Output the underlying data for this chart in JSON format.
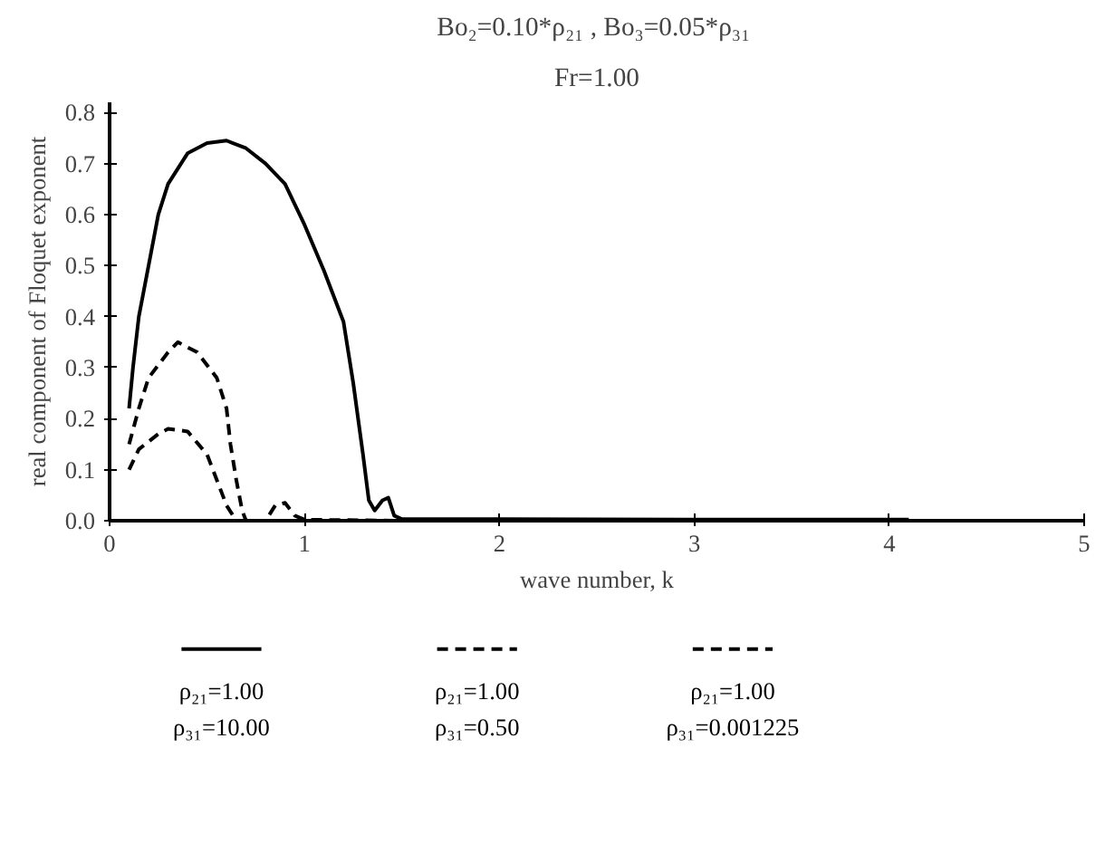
{
  "chart_data": {
    "type": "line",
    "title": "Bo₂=0.10*ρ₂₁ ,  Bo₃=0.05*ρ₃₁",
    "subtitle": "Fr=1.00",
    "xlabel": "wave number, k",
    "ylabel": "real component of Floquet exponent",
    "xlim": [
      0,
      5
    ],
    "xticks": [
      0,
      1,
      2,
      3,
      4,
      5
    ],
    "ylim": [
      0,
      0.82
    ],
    "yticks": [
      {
        "value": 0,
        "label": "0.0"
      },
      {
        "value": 0.1,
        "label": "0.1"
      },
      {
        "value": 0.2,
        "label": "0.2"
      },
      {
        "value": 0.3,
        "label": "0.3"
      },
      {
        "value": 0.4,
        "label": "0.4"
      },
      {
        "value": 0.5,
        "label": "0.5"
      },
      {
        "value": 0.6,
        "label": "0.6"
      },
      {
        "value": 0.7,
        "label": "0.7"
      },
      {
        "value": 0.8,
        "label": "0.8"
      }
    ],
    "grid": false,
    "legend": "bottom",
    "marker": "none",
    "series": [
      {
        "name": "ρ₂₁=1.00\nρ₃₁=10.00",
        "color": "#000000",
        "line_style": "solid",
        "x": [
          0.1,
          0.12,
          0.15,
          0.2,
          0.25,
          0.3,
          0.4,
          0.5,
          0.6,
          0.7,
          0.8,
          0.9,
          1.0,
          1.1,
          1.2,
          1.25,
          1.3,
          1.33,
          1.36,
          1.4,
          1.43,
          1.46,
          1.5,
          2.0,
          3.0,
          4.1
        ],
        "values": [
          0.22,
          0.3,
          0.4,
          0.5,
          0.6,
          0.66,
          0.72,
          0.74,
          0.745,
          0.73,
          0.7,
          0.66,
          0.58,
          0.49,
          0.39,
          0.27,
          0.13,
          0.04,
          0.02,
          0.04,
          0.045,
          0.01,
          0.003,
          0.003,
          0.002,
          0.002
        ]
      },
      {
        "name": "ρ₂₁=1.00\nρ₃₁=0.50",
        "color": "#000000",
        "line_style": "dashed",
        "x": [
          0.1,
          0.15,
          0.2,
          0.3,
          0.35,
          0.45,
          0.55,
          0.6,
          0.62,
          0.65,
          0.68,
          0.7
        ],
        "values": [
          0.15,
          0.22,
          0.28,
          0.33,
          0.35,
          0.33,
          0.28,
          0.22,
          0.15,
          0.08,
          0.02,
          0.0
        ]
      },
      {
        "name": "ρ₂₁=1.00\nρ₃₁=0.001225",
        "color": "#000000",
        "line_style": "dashed",
        "x": [
          0.1,
          0.15,
          0.25,
          0.3,
          0.4,
          0.5,
          0.55,
          0.6,
          0.65,
          0.8,
          0.85,
          0.9,
          0.95,
          1.0,
          1.5
        ],
        "values": [
          0.1,
          0.14,
          0.17,
          0.18,
          0.175,
          0.13,
          0.08,
          0.03,
          0.0,
          0.0,
          0.03,
          0.035,
          0.01,
          0.002,
          0.0
        ]
      }
    ]
  }
}
